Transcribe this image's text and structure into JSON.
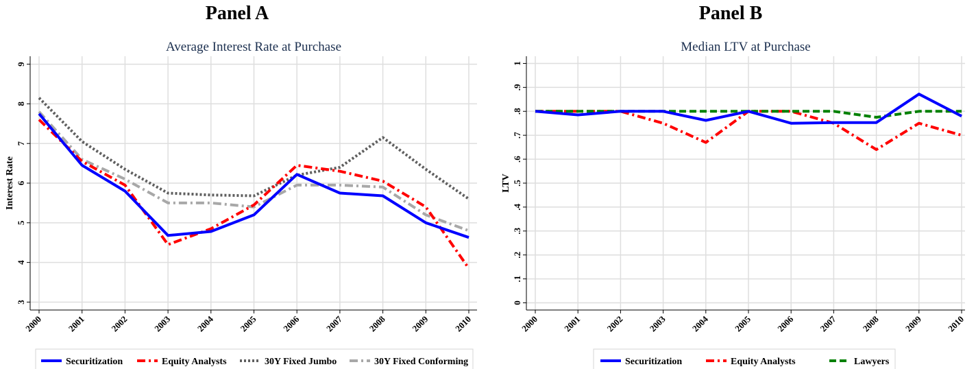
{
  "panels": {
    "a": {
      "heading": "Panel A"
    },
    "b": {
      "heading": "Panel B"
    }
  },
  "chart_data": [
    {
      "type": "line",
      "title": "Average Interest Rate at Purchase",
      "xlabel": "",
      "ylabel": "Interest Rate",
      "x": [
        "2000",
        "2001",
        "2002",
        "2003",
        "2004",
        "2005",
        "2006",
        "2007",
        "2008",
        "2009",
        "2010"
      ],
      "ylim": [
        2.8,
        9.2
      ],
      "yticks": [
        3,
        4,
        5,
        6,
        7,
        8,
        9
      ],
      "ytick_labels": [
        "3",
        "4",
        "5",
        "6",
        "7",
        "8",
        "9"
      ],
      "grid": true,
      "legend": "bottom",
      "series": [
        {
          "name": "30Y Fixed Conforming",
          "color": "#a8a8a8",
          "style": "dashdot",
          "values": [
            7.8,
            6.6,
            6.1,
            5.5,
            5.5,
            5.4,
            5.95,
            5.95,
            5.9,
            5.2,
            4.8
          ]
        },
        {
          "name": "30Y Fixed Jumbo",
          "color": "#5f5f5f",
          "style": "dotted",
          "values": [
            8.15,
            7.05,
            6.35,
            5.75,
            5.7,
            5.68,
            6.2,
            6.4,
            7.15,
            6.35,
            5.6
          ]
        },
        {
          "name": "Equity Analysts",
          "color": "#ff0000",
          "style": "dashdot",
          "values": [
            7.6,
            6.55,
            5.95,
            4.45,
            4.85,
            5.45,
            6.45,
            6.3,
            6.05,
            5.4,
            3.85
          ]
        },
        {
          "name": "Securitization",
          "color": "#0000ff",
          "style": "solid",
          "values": [
            7.75,
            6.45,
            5.8,
            4.68,
            4.78,
            5.2,
            6.22,
            5.75,
            5.68,
            5.0,
            4.63
          ]
        }
      ]
    },
    {
      "type": "line",
      "title": "Median LTV at Purchase",
      "xlabel": "",
      "ylabel": "LTV",
      "x": [
        "2000",
        "2001",
        "2002",
        "2003",
        "2004",
        "2005",
        "2006",
        "2007",
        "2008",
        "2009",
        "2010"
      ],
      "ylim": [
        -0.03,
        1.03
      ],
      "yticks": [
        0,
        0.1,
        0.2,
        0.3,
        0.4,
        0.5,
        0.6,
        0.7,
        0.8,
        0.9,
        1
      ],
      "ytick_labels": [
        "0",
        ".1",
        ".2",
        ".3",
        ".4",
        ".5",
        ".6",
        ".7",
        ".8",
        ".9",
        "1"
      ],
      "grid": true,
      "legend": "bottom",
      "series": [
        {
          "name": "Equity Analysts",
          "color": "#ff0000",
          "style": "dashdot",
          "values": [
            0.8,
            0.8,
            0.8,
            0.75,
            0.67,
            0.8,
            0.8,
            0.75,
            0.64,
            0.75,
            0.7
          ]
        },
        {
          "name": "Lawyers",
          "color": "#008000",
          "style": "dashed",
          "values": [
            0.8,
            0.8,
            0.8,
            0.8,
            0.8,
            0.8,
            0.8,
            0.8,
            0.775,
            0.8,
            0.8
          ]
        },
        {
          "name": "Securitization",
          "color": "#0000ff",
          "style": "solid",
          "values": [
            0.8,
            0.785,
            0.8,
            0.8,
            0.762,
            0.8,
            0.75,
            0.753,
            0.753,
            0.872,
            0.78
          ]
        }
      ]
    }
  ],
  "legends": {
    "a": [
      "Securitization",
      "Equity Analysts",
      "30Y Fixed Jumbo",
      "30Y Fixed Conforming"
    ],
    "b": [
      "Securitization",
      "Equity Analysts",
      "Lawyers"
    ]
  }
}
